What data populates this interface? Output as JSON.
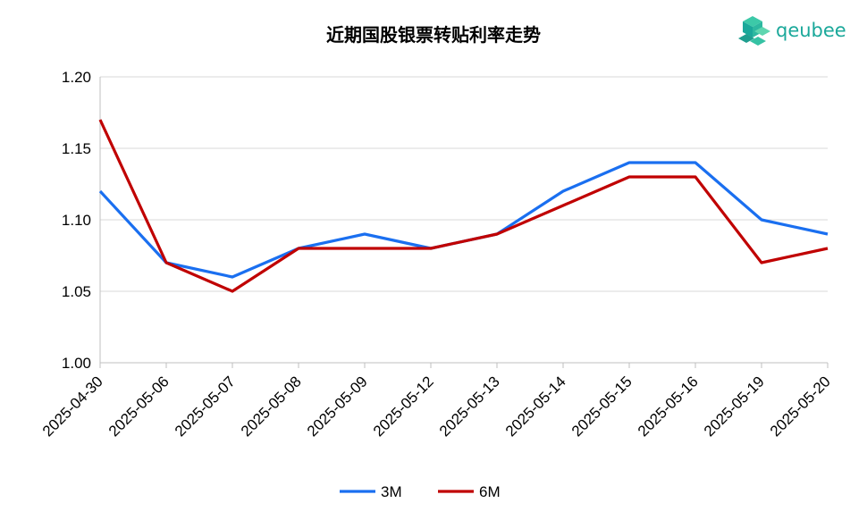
{
  "brand": {
    "name": "qeubee",
    "color": "#1aa89a"
  },
  "chart_data": {
    "type": "line",
    "title": "近期国股银票转贴利率走势",
    "xlabel": "",
    "ylabel": "",
    "x": [
      "2025-04-30",
      "2025-05-06",
      "2025-05-07",
      "2025-05-08",
      "2025-05-09",
      "2025-05-12",
      "2025-05-13",
      "2025-05-14",
      "2025-05-15",
      "2025-05-16",
      "2025-05-19",
      "2025-05-20"
    ],
    "ylim": [
      1.0,
      1.2
    ],
    "yticks": [
      "1.00",
      "1.05",
      "1.10",
      "1.15",
      "1.20"
    ],
    "grid": true,
    "legend": "bottom",
    "series": [
      {
        "name": "3M",
        "color": "#1a6ff0",
        "values": [
          1.12,
          1.07,
          1.06,
          1.08,
          1.09,
          1.08,
          1.09,
          1.12,
          1.14,
          1.14,
          1.1,
          1.09
        ]
      },
      {
        "name": "6M",
        "color": "#c00000",
        "values": [
          1.17,
          1.07,
          1.05,
          1.08,
          1.08,
          1.08,
          1.09,
          1.11,
          1.13,
          1.13,
          1.07,
          1.08
        ]
      }
    ]
  }
}
